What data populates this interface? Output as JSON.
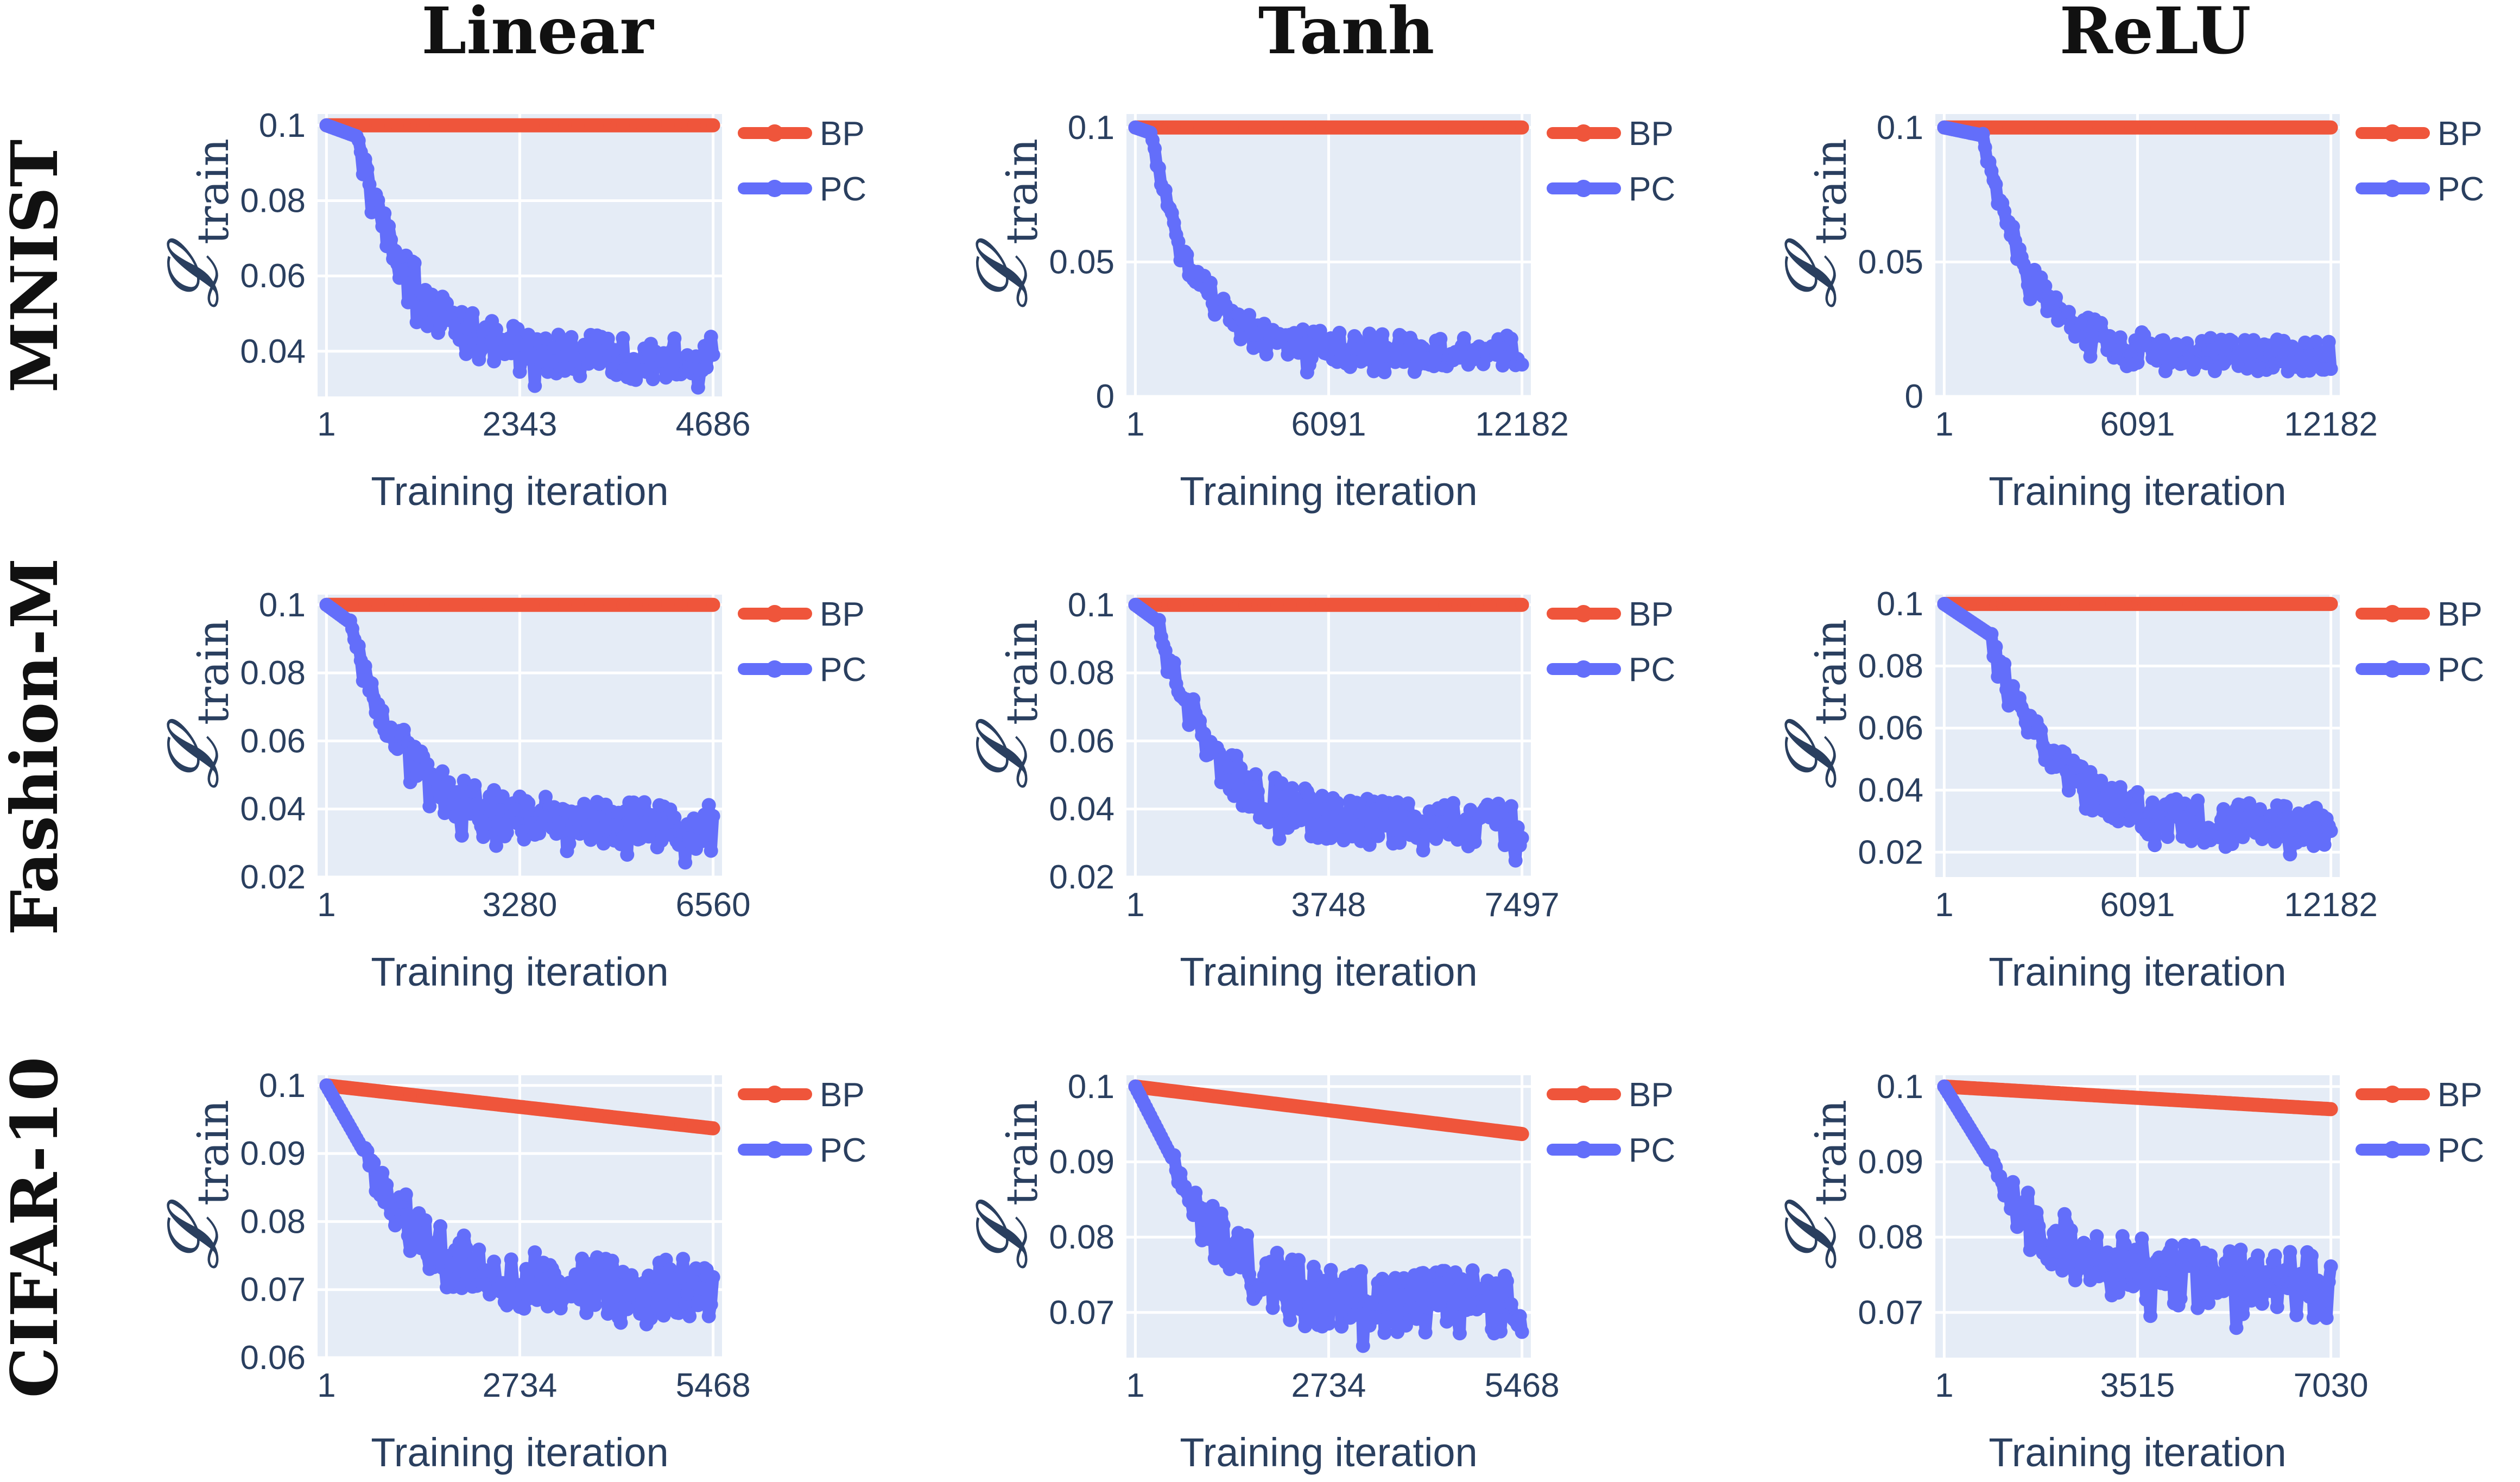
{
  "columns": [
    "Linear",
    "Tanh",
    "ReLU"
  ],
  "rows": [
    "MNIST",
    "Fashion-M",
    "CIFAR-10"
  ],
  "colors": {
    "BP": "#EF553B",
    "PC": "#636EFA",
    "plot_bg": "#E5ECF6"
  },
  "chart_data": [
    {
      "type": "line",
      "row": "MNIST",
      "col": "Linear",
      "xlabel": "Training iteration",
      "ylabel_main": "𝓛",
      "ylabel_sub": "train",
      "x_ticks": [
        "1",
        "2343",
        "4686"
      ],
      "x_range": [
        1,
        4686
      ],
      "y_ticks": [
        "0.1",
        "0.08",
        "0.06",
        "0.04"
      ],
      "y_tick_values": [
        0.1,
        0.08,
        0.06,
        0.04
      ],
      "ylim": [
        0.028,
        0.103
      ],
      "series": [
        {
          "name": "BP",
          "start": 0.1,
          "end": 0.1
        },
        {
          "name": "PC",
          "start": 0.1,
          "plateau_end": 0.097,
          "plateau_frac": 0.08,
          "mid": 0.042,
          "mid_frac": 0.4,
          "end": 0.038,
          "noise": 0.006,
          "drop": 0.004
        }
      ]
    },
    {
      "type": "line",
      "row": "MNIST",
      "col": "Tanh",
      "xlabel": "Training iteration",
      "ylabel_main": "𝓛",
      "ylabel_sub": "train",
      "x_ticks": [
        "1",
        "6091",
        "12182"
      ],
      "x_range": [
        1,
        12182
      ],
      "y_ticks": [
        "0.1",
        "0.05",
        "0"
      ],
      "y_tick_values": [
        0.1,
        0.05,
        0
      ],
      "ylim": [
        0,
        0.105
      ],
      "series": [
        {
          "name": "BP",
          "start": 0.1,
          "end": 0.1
        },
        {
          "name": "PC",
          "start": 0.1,
          "plateau_end": 0.098,
          "plateau_frac": 0.04,
          "mid": 0.035,
          "mid_frac": 0.3,
          "end": 0.017,
          "noise": 0.006,
          "drop": 0.004
        }
      ]
    },
    {
      "type": "line",
      "row": "MNIST",
      "col": "ReLU",
      "xlabel": "Training iteration",
      "ylabel_main": "𝓛",
      "ylabel_sub": "train",
      "x_ticks": [
        "1",
        "6091",
        "12182"
      ],
      "x_range": [
        1,
        12182
      ],
      "y_ticks": [
        "0.1",
        "0.05",
        "0"
      ],
      "y_tick_values": [
        0.1,
        0.05,
        0
      ],
      "ylim": [
        0,
        0.105
      ],
      "series": [
        {
          "name": "BP",
          "start": 0.1,
          "end": 0.1
        },
        {
          "name": "PC",
          "start": 0.1,
          "plateau_end": 0.097,
          "plateau_frac": 0.1,
          "mid": 0.04,
          "mid_frac": 0.4,
          "end": 0.015,
          "noise": 0.006,
          "drop": 0.004
        }
      ]
    },
    {
      "type": "line",
      "row": "Fashion-M",
      "col": "Linear",
      "xlabel": "Training iteration",
      "ylabel_main": "𝓛",
      "ylabel_sub": "train",
      "x_ticks": [
        "1",
        "3280",
        "6560"
      ],
      "x_range": [
        1,
        6560
      ],
      "y_ticks": [
        "0.1",
        "0.08",
        "0.06",
        "0.04",
        "0.02"
      ],
      "y_tick_values": [
        0.1,
        0.08,
        0.06,
        0.04,
        0.02
      ],
      "ylim": [
        0.02,
        0.103
      ],
      "series": [
        {
          "name": "BP",
          "start": 0.1,
          "end": 0.1
        },
        {
          "name": "PC",
          "start": 0.1,
          "plateau_end": 0.095,
          "plateau_frac": 0.06,
          "mid": 0.042,
          "mid_frac": 0.4,
          "end": 0.035,
          "noise": 0.007,
          "drop": 0.004
        }
      ]
    },
    {
      "type": "line",
      "row": "Fashion-M",
      "col": "Tanh",
      "xlabel": "Training iteration",
      "ylabel_main": "𝓛",
      "ylabel_sub": "train",
      "x_ticks": [
        "1",
        "3748",
        "7497"
      ],
      "x_range": [
        1,
        7497
      ],
      "y_ticks": [
        "0.1",
        "0.08",
        "0.06",
        "0.04",
        "0.02"
      ],
      "y_tick_values": [
        0.1,
        0.08,
        0.06,
        0.04,
        0.02
      ],
      "ylim": [
        0.02,
        0.103
      ],
      "series": [
        {
          "name": "BP",
          "start": 0.1,
          "end": 0.1
        },
        {
          "name": "PC",
          "start": 0.1,
          "plateau_end": 0.095,
          "plateau_frac": 0.06,
          "mid": 0.042,
          "mid_frac": 0.4,
          "end": 0.035,
          "noise": 0.007,
          "drop": 0.004
        }
      ]
    },
    {
      "type": "line",
      "row": "Fashion-M",
      "col": "ReLU",
      "xlabel": "Training iteration",
      "ylabel_main": "𝓛",
      "ylabel_sub": "train",
      "x_ticks": [
        "1",
        "6091",
        "12182"
      ],
      "x_range": [
        1,
        12182
      ],
      "y_ticks": [
        "0.1",
        "0.08",
        "0.06",
        "0.04",
        "0.02"
      ],
      "y_tick_values": [
        0.1,
        0.08,
        0.06,
        0.04,
        0.02
      ],
      "ylim": [
        0.012,
        0.103
      ],
      "series": [
        {
          "name": "BP",
          "start": 0.1,
          "end": 0.1
        },
        {
          "name": "PC",
          "start": 0.1,
          "plateau_end": 0.09,
          "plateau_frac": 0.12,
          "mid": 0.04,
          "mid_frac": 0.5,
          "end": 0.028,
          "noise": 0.007,
          "drop": 0.004
        }
      ]
    },
    {
      "type": "line",
      "row": "CIFAR-10",
      "col": "Linear",
      "xlabel": "Training iteration",
      "ylabel_main": "𝓛",
      "ylabel_sub": "train",
      "x_ticks": [
        "1",
        "2734",
        "5468"
      ],
      "x_range": [
        1,
        5468
      ],
      "y_ticks": [
        "0.1",
        "0.09",
        "0.08",
        "0.07",
        "0.06"
      ],
      "y_tick_values": [
        0.1,
        0.09,
        0.08,
        0.07,
        0.06
      ],
      "ylim": [
        0.06,
        0.1015
      ],
      "series": [
        {
          "name": "BP",
          "start": 0.1,
          "end": 0.0937
        },
        {
          "name": "PC",
          "start": 0.1,
          "plateau_end": 0.09,
          "plateau_frac": 0.1,
          "mid": 0.078,
          "mid_frac": 0.45,
          "end": 0.07,
          "noise": 0.0045,
          "drop": 0.002
        }
      ]
    },
    {
      "type": "line",
      "row": "CIFAR-10",
      "col": "Tanh",
      "xlabel": "Training iteration",
      "ylabel_main": "𝓛",
      "ylabel_sub": "train",
      "x_ticks": [
        "1",
        "2734",
        "5468"
      ],
      "x_range": [
        1,
        5468
      ],
      "y_ticks": [
        "0.1",
        "0.09",
        "0.08",
        "0.07"
      ],
      "y_tick_values": [
        0.1,
        0.09,
        0.08,
        0.07
      ],
      "ylim": [
        0.064,
        0.1015
      ],
      "series": [
        {
          "name": "BP",
          "start": 0.1,
          "end": 0.0937
        },
        {
          "name": "PC",
          "start": 0.1,
          "plateau_end": 0.09,
          "plateau_frac": 0.1,
          "mid": 0.077,
          "mid_frac": 0.45,
          "end": 0.071,
          "noise": 0.0045,
          "drop": 0.002
        }
      ]
    },
    {
      "type": "line",
      "row": "CIFAR-10",
      "col": "ReLU",
      "xlabel": "Training iteration",
      "ylabel_main": "𝓛",
      "ylabel_sub": "train",
      "x_ticks": [
        "1",
        "3515",
        "7030"
      ],
      "x_range": [
        1,
        7030
      ],
      "y_ticks": [
        "0.1",
        "0.09",
        "0.08",
        "0.07"
      ],
      "y_tick_values": [
        0.1,
        0.09,
        0.08,
        0.07
      ],
      "ylim": [
        0.064,
        0.1015
      ],
      "series": [
        {
          "name": "BP",
          "start": 0.1,
          "end": 0.097
        },
        {
          "name": "PC",
          "start": 0.1,
          "plateau_end": 0.09,
          "plateau_frac": 0.12,
          "mid": 0.08,
          "mid_frac": 0.5,
          "end": 0.074,
          "noise": 0.0045,
          "drop": 0.002
        }
      ]
    }
  ]
}
